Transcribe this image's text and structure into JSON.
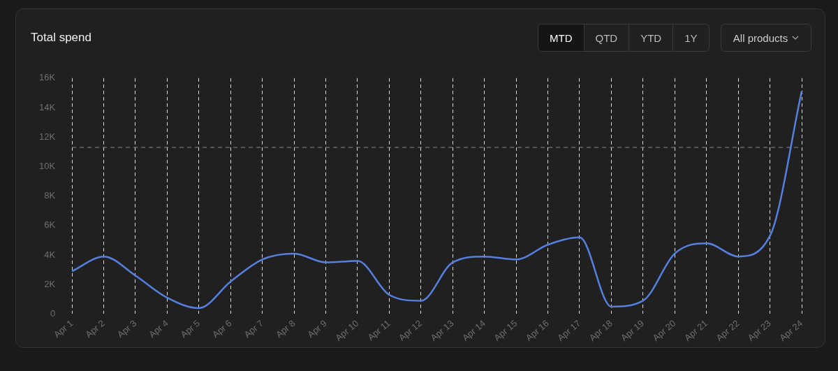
{
  "chart_data": {
    "type": "line",
    "title": "Total spend",
    "categories": [
      "Apr 1",
      "Apr 2",
      "Apr 3",
      "Apr 4",
      "Apr 5",
      "Apr 6",
      "Apr 7",
      "Apr 8",
      "Apr 9",
      "Apr 10",
      "Apr 11",
      "Apr 12",
      "Apr 13",
      "Apr 14",
      "Apr 15",
      "Apr 16",
      "Apr 17",
      "Apr 18",
      "Apr 19",
      "Apr 20",
      "Apr 21",
      "Apr 22",
      "Apr 23",
      "Apr 24"
    ],
    "series": [
      {
        "color": "#5580e0",
        "values": [
          2900,
          3900,
          2600,
          1100,
          400,
          2200,
          3700,
          4100,
          3500,
          3600,
          1300,
          900,
          3500,
          3900,
          3700,
          4700,
          5200,
          500,
          900,
          4100,
          4800,
          3900,
          5300,
          15100
        ]
      }
    ],
    "ylim": [
      0,
      16000
    ],
    "yticks": [
      {
        "value": 0,
        "label": "0"
      },
      {
        "value": 2000,
        "label": "2K"
      },
      {
        "value": 4000,
        "label": "4K"
      },
      {
        "value": 6000,
        "label": "6K"
      },
      {
        "value": 8000,
        "label": "8K"
      },
      {
        "value": 10000,
        "label": "10K"
      },
      {
        "value": 12000,
        "label": "12K"
      },
      {
        "value": 14000,
        "label": "14K"
      },
      {
        "value": 16000,
        "label": "16K"
      }
    ],
    "ref_lines": [
      {
        "axis": "y",
        "value": 11300,
        "color": "#8a8a8a",
        "line_style": "dashed"
      }
    ],
    "grid": "x",
    "legend": false,
    "marker": "none",
    "line_style": "solid",
    "annotations": [
      "MTD",
      "QTD",
      "YTD",
      "1Y",
      "All products"
    ]
  }
}
